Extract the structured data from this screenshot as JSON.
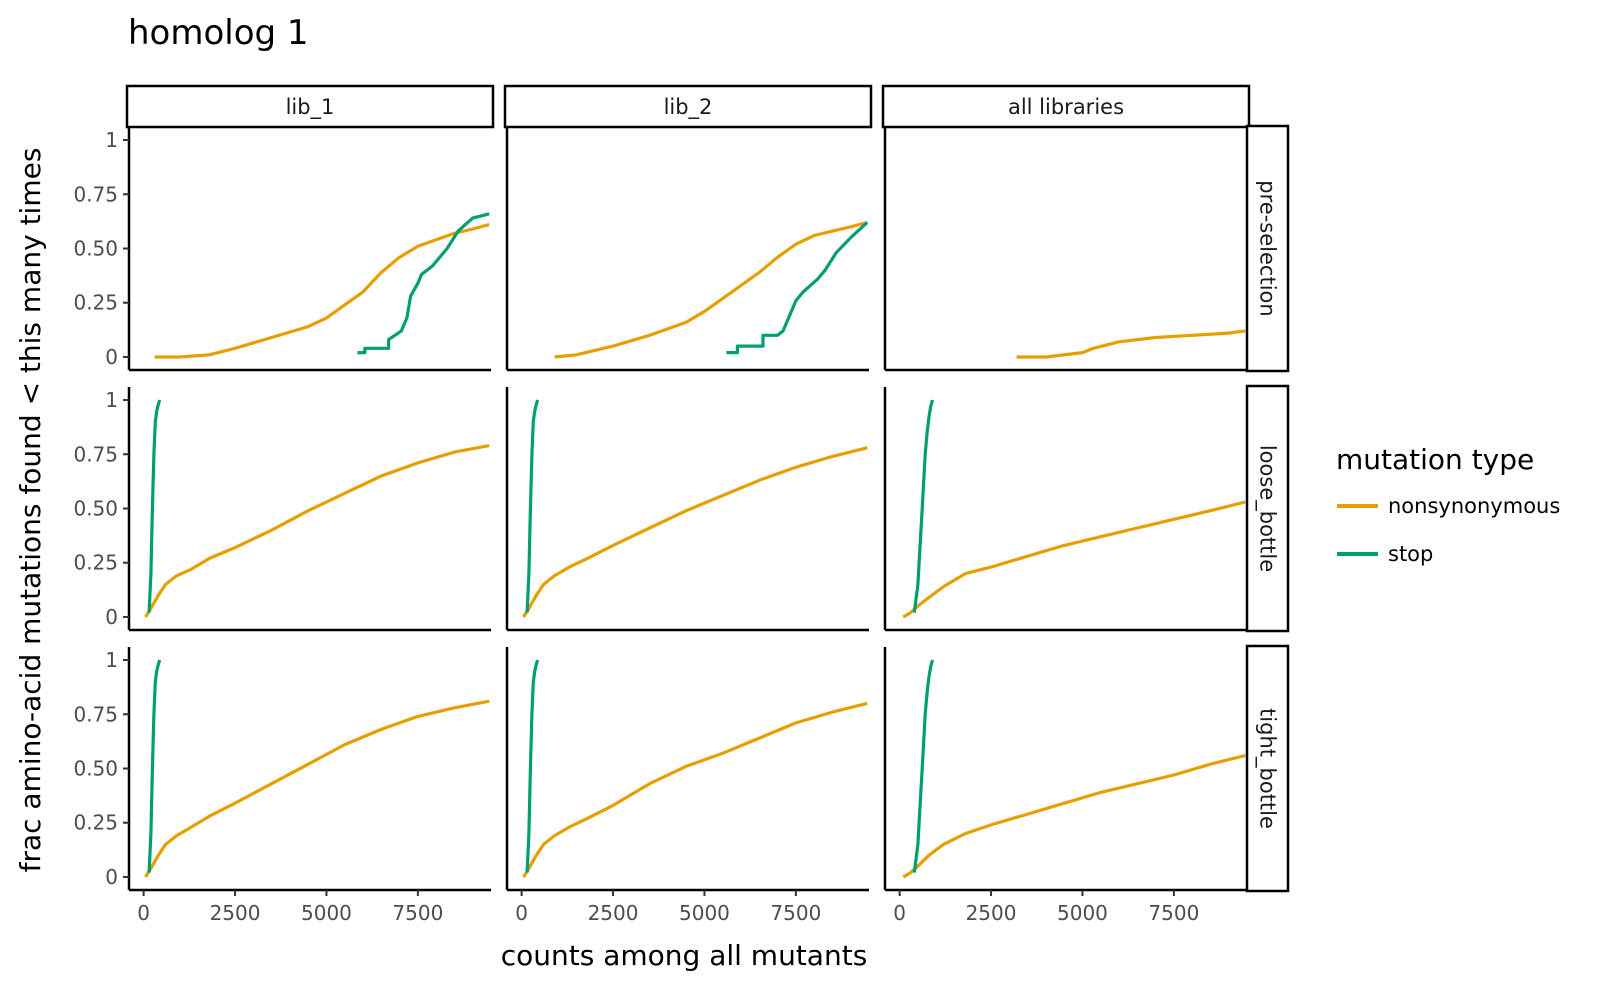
{
  "chart_data": {
    "type": "line",
    "title": "homolog 1",
    "xlabel": "counts among all mutants",
    "ylabel": "frac amino-acid mutations found < this many times",
    "xlim": [
      -400,
      9500
    ],
    "ylim": [
      -0.06,
      1.06
    ],
    "x_ticks": [
      0,
      2500,
      5000,
      7500
    ],
    "x_tick_labels": [
      "0",
      "2500",
      "5000",
      "7500"
    ],
    "y_ticks": [
      0,
      0.25,
      0.5,
      0.75,
      1
    ],
    "y_tick_labels": [
      "0",
      "0.25",
      "0.50",
      "0.75",
      "1"
    ],
    "columns": [
      "lib_1",
      "lib_2",
      "all libraries"
    ],
    "rows": [
      "pre-selection",
      "loose_bottle",
      "tight_bottle"
    ],
    "legend": {
      "title": "mutation type",
      "position": "right",
      "entries": [
        {
          "name": "nonsynonymous",
          "color": "#E69F00"
        },
        {
          "name": "stop",
          "color": "#009E73"
        }
      ]
    },
    "grid": false,
    "panels": [
      {
        "row": 0,
        "col": 0,
        "series": [
          {
            "name": "nonsynonymous",
            "x": [
              300,
              1000,
              1800,
              2500,
              3500,
              4500,
              5000,
              5500,
              6000,
              6500,
              7000,
              7500,
              8000,
              8500,
              9000,
              9450
            ],
            "y": [
              0,
              0,
              0.01,
              0.04,
              0.09,
              0.14,
              0.18,
              0.24,
              0.3,
              0.39,
              0.46,
              0.51,
              0.54,
              0.57,
              0.59,
              0.61
            ]
          },
          {
            "name": "stop",
            "x": [
              5850,
              6050,
              6050,
              6700,
              6700,
              7050,
              7200,
              7300,
              7500,
              7600,
              7900,
              8100,
              8300,
              8600,
              9000,
              9450
            ],
            "y": [
              0.02,
              0.02,
              0.04,
              0.04,
              0.08,
              0.12,
              0.18,
              0.28,
              0.34,
              0.38,
              0.42,
              0.46,
              0.5,
              0.58,
              0.64,
              0.66
            ]
          }
        ]
      },
      {
        "row": 0,
        "col": 1,
        "series": [
          {
            "name": "nonsynonymous",
            "x": [
              900,
              1500,
              2500,
              3500,
              4500,
              5000,
              5500,
              6000,
              6500,
              7000,
              7500,
              8000,
              8500,
              9000,
              9450
            ],
            "y": [
              0,
              0.01,
              0.05,
              0.1,
              0.16,
              0.21,
              0.27,
              0.33,
              0.39,
              0.46,
              0.52,
              0.56,
              0.58,
              0.6,
              0.62
            ]
          },
          {
            "name": "stop",
            "x": [
              5600,
              5900,
              5900,
              6600,
              6600,
              7000,
              7150,
              7300,
              7500,
              7700,
              7900,
              8100,
              8300,
              8600,
              9000,
              9450
            ],
            "y": [
              0.02,
              0.02,
              0.05,
              0.05,
              0.1,
              0.1,
              0.12,
              0.18,
              0.26,
              0.3,
              0.33,
              0.36,
              0.4,
              0.48,
              0.55,
              0.62
            ]
          }
        ]
      },
      {
        "row": 0,
        "col": 2,
        "series": [
          {
            "name": "nonsynonymous",
            "x": [
              3200,
              4000,
              5000,
              5300,
              6000,
              7000,
              8000,
              9000,
              9450
            ],
            "y": [
              0,
              0,
              0.02,
              0.04,
              0.07,
              0.09,
              0.1,
              0.11,
              0.12
            ]
          }
        ]
      },
      {
        "row": 1,
        "col": 0,
        "series": [
          {
            "name": "nonsynonymous",
            "x": [
              50,
              200,
              400,
              600,
              900,
              1300,
              1800,
              2500,
              3500,
              4500,
              5500,
              6500,
              7500,
              8500,
              9450
            ],
            "y": [
              0,
              0.04,
              0.1,
              0.15,
              0.19,
              0.22,
              0.27,
              0.32,
              0.4,
              0.49,
              0.57,
              0.65,
              0.71,
              0.76,
              0.79
            ]
          },
          {
            "name": "stop",
            "x": [
              150,
              200,
              240,
              280,
              320,
              360,
              400,
              440
            ],
            "y": [
              0.02,
              0.2,
              0.5,
              0.75,
              0.9,
              0.95,
              0.98,
              1
            ]
          }
        ]
      },
      {
        "row": 1,
        "col": 1,
        "series": [
          {
            "name": "nonsynonymous",
            "x": [
              50,
              200,
              400,
              600,
              900,
              1300,
              1800,
              2500,
              3500,
              4500,
              5500,
              6500,
              7500,
              8500,
              9450
            ],
            "y": [
              0,
              0.04,
              0.1,
              0.15,
              0.19,
              0.23,
              0.27,
              0.33,
              0.41,
              0.49,
              0.56,
              0.63,
              0.69,
              0.74,
              0.78
            ]
          },
          {
            "name": "stop",
            "x": [
              150,
              200,
              240,
              280,
              320,
              360,
              400,
              440
            ],
            "y": [
              0.02,
              0.2,
              0.5,
              0.75,
              0.9,
              0.95,
              0.98,
              1
            ]
          }
        ]
      },
      {
        "row": 1,
        "col": 2,
        "series": [
          {
            "name": "nonsynonymous",
            "x": [
              100,
              300,
              500,
              800,
              1200,
              1800,
              2500,
              3500,
              4500,
              5500,
              6500,
              7500,
              8500,
              9450
            ],
            "y": [
              0,
              0.02,
              0.05,
              0.09,
              0.14,
              0.2,
              0.23,
              0.28,
              0.33,
              0.37,
              0.41,
              0.45,
              0.49,
              0.53
            ]
          },
          {
            "name": "stop",
            "x": [
              400,
              500,
              550,
              600,
              650,
              700,
              750,
              800,
              850,
              900
            ],
            "y": [
              0.02,
              0.15,
              0.3,
              0.45,
              0.6,
              0.75,
              0.85,
              0.92,
              0.97,
              1
            ]
          }
        ]
      },
      {
        "row": 2,
        "col": 0,
        "series": [
          {
            "name": "nonsynonymous",
            "x": [
              50,
              200,
              400,
              600,
              900,
              1300,
              1800,
              2500,
              3500,
              4500,
              5500,
              6500,
              7500,
              8500,
              9450
            ],
            "y": [
              0,
              0.04,
              0.1,
              0.15,
              0.19,
              0.23,
              0.28,
              0.34,
              0.43,
              0.52,
              0.61,
              0.68,
              0.74,
              0.78,
              0.81
            ]
          },
          {
            "name": "stop",
            "x": [
              150,
              200,
              240,
              280,
              320,
              360,
              400,
              440
            ],
            "y": [
              0.02,
              0.2,
              0.5,
              0.75,
              0.9,
              0.95,
              0.98,
              1
            ]
          }
        ]
      },
      {
        "row": 2,
        "col": 1,
        "series": [
          {
            "name": "nonsynonymous",
            "x": [
              50,
              200,
              400,
              600,
              900,
              1300,
              1800,
              2500,
              3500,
              4500,
              5500,
              6500,
              7500,
              8500,
              9450
            ],
            "y": [
              0,
              0.04,
              0.1,
              0.15,
              0.19,
              0.23,
              0.27,
              0.33,
              0.43,
              0.51,
              0.57,
              0.64,
              0.71,
              0.76,
              0.8
            ]
          },
          {
            "name": "stop",
            "x": [
              150,
              200,
              240,
              280,
              320,
              360,
              400,
              440
            ],
            "y": [
              0.02,
              0.2,
              0.5,
              0.75,
              0.9,
              0.95,
              0.98,
              1
            ]
          }
        ]
      },
      {
        "row": 2,
        "col": 2,
        "series": [
          {
            "name": "nonsynonymous",
            "x": [
              100,
              300,
              500,
              800,
              1200,
              1800,
              2500,
              3500,
              4500,
              5500,
              6500,
              7500,
              8500,
              9450
            ],
            "y": [
              0,
              0.02,
              0.05,
              0.1,
              0.15,
              0.2,
              0.24,
              0.29,
              0.34,
              0.39,
              0.43,
              0.47,
              0.52,
              0.56
            ]
          },
          {
            "name": "stop",
            "x": [
              400,
              500,
              550,
              600,
              650,
              700,
              750,
              800,
              850,
              900
            ],
            "y": [
              0.02,
              0.15,
              0.3,
              0.45,
              0.6,
              0.75,
              0.85,
              0.92,
              0.97,
              1
            ]
          }
        ]
      }
    ]
  }
}
